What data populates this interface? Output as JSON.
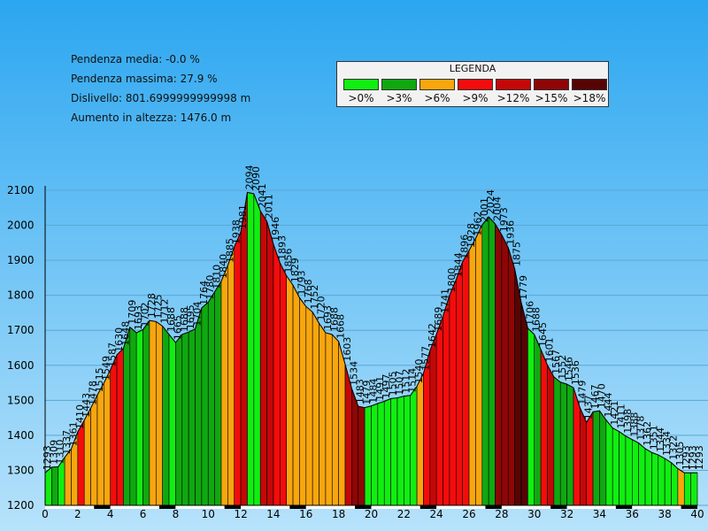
{
  "stats": {
    "avg_grade": "Pendenza media: -0.0 %",
    "max_grade": "Pendenza massima: 27.9 %",
    "drop": "Dislivello: 801.6999999999998 m",
    "gain": "Aumento in altezza: 1476.0 m"
  },
  "legend": {
    "title": "LEGENDA",
    "items": [
      {
        "label": ">0%",
        "color": "#11ee11"
      },
      {
        "label": ">3%",
        "color": "#10a810"
      },
      {
        "label": ">6%",
        "color": "#f7a60e"
      },
      {
        "label": ">9%",
        "color": "#f40c0c"
      },
      {
        "label": ">12%",
        "color": "#c40808"
      },
      {
        "label": ">15%",
        "color": "#8e0606"
      },
      {
        "label": ">18%",
        "color": "#560404"
      }
    ]
  },
  "chart_data": {
    "type": "area",
    "xlim": [
      0,
      40
    ],
    "ylim": [
      1200,
      2100
    ],
    "x_ticks": [
      "0",
      "2",
      "4",
      "6",
      "8",
      "10",
      "12",
      "14",
      "16",
      "18",
      "20",
      "22",
      "24",
      "26",
      "28",
      "30",
      "32",
      "34",
      "36",
      "38",
      "40"
    ],
    "y_ticks": [
      "1200",
      "1300",
      "1400",
      "1500",
      "1600",
      "1700",
      "1800",
      "1900",
      "2000",
      "2100"
    ],
    "grid": true,
    "segments": [
      {
        "x": 0.0,
        "elev": 1293,
        "label": "1293",
        "grade": 0
      },
      {
        "x": 0.4,
        "elev": 1309,
        "label": "1309",
        "grade": 1
      },
      {
        "x": 0.8,
        "elev": 1310,
        "label": "1310",
        "grade": 0
      },
      {
        "x": 1.2,
        "elev": 1337,
        "label": "1337",
        "grade": 2
      },
      {
        "x": 1.6,
        "elev": 1361,
        "label": "1361",
        "grade": 2
      },
      {
        "x": 2.0,
        "elev": 1410,
        "label": "1410",
        "grade": 3
      },
      {
        "x": 2.4,
        "elev": 1443,
        "label": "1443",
        "grade": 2
      },
      {
        "x": 2.8,
        "elev": 1478,
        "label": "1478",
        "grade": 2
      },
      {
        "x": 3.2,
        "elev": 1515,
        "label": "1515",
        "grade": 2
      },
      {
        "x": 3.6,
        "elev": 1549,
        "label": "1549",
        "grade": 2
      },
      {
        "x": 4.0,
        "elev": 1587,
        "label": "1587",
        "grade": 3
      },
      {
        "x": 4.4,
        "elev": 1630,
        "label": "1630",
        "grade": 3
      },
      {
        "x": 4.8,
        "elev": 1648,
        "label": "1648",
        "grade": 1
      },
      {
        "x": 5.2,
        "elev": 1709,
        "label": "1709",
        "grade": 1
      },
      {
        "x": 5.6,
        "elev": 1693,
        "label": "1693",
        "grade": 0
      },
      {
        "x": 6.0,
        "elev": 1702,
        "label": "1702",
        "grade": 1
      },
      {
        "x": 6.4,
        "elev": 1728,
        "label": "1728",
        "grade": 2
      },
      {
        "x": 6.8,
        "elev": 1725,
        "label": "1725",
        "grade": 2
      },
      {
        "x": 7.2,
        "elev": 1712,
        "label": "1712",
        "grade": 1
      },
      {
        "x": 7.6,
        "elev": 1688,
        "label": "1688",
        "grade": 0
      },
      {
        "x": 8.0,
        "elev": 1665,
        "label": "1665",
        "grade": 1
      },
      {
        "x": 8.4,
        "elev": 1688,
        "label": "1688",
        "grade": 1
      },
      {
        "x": 8.8,
        "elev": 1695,
        "label": "1695",
        "grade": 1
      },
      {
        "x": 9.2,
        "elev": 1704,
        "label": "1704",
        "grade": 1
      },
      {
        "x": 9.6,
        "elev": 1764,
        "label": "1764",
        "grade": 1
      },
      {
        "x": 10.0,
        "elev": 1780,
        "label": "1780",
        "grade": 1
      },
      {
        "x": 10.4,
        "elev": 1810,
        "label": "1810",
        "grade": 1
      },
      {
        "x": 10.8,
        "elev": 1840,
        "label": "1840",
        "grade": 2
      },
      {
        "x": 11.2,
        "elev": 1885,
        "label": "1885",
        "grade": 2
      },
      {
        "x": 11.6,
        "elev": 1938,
        "label": "1938",
        "grade": 3
      },
      {
        "x": 12.0,
        "elev": 1981,
        "label": "1981",
        "grade": 4
      },
      {
        "x": 12.4,
        "elev": 2094,
        "label": "2094",
        "grade": 0
      },
      {
        "x": 12.8,
        "elev": 2090,
        "label": "2090",
        "grade": 0
      },
      {
        "x": 13.2,
        "elev": 2041,
        "label": "2041",
        "grade": 4
      },
      {
        "x": 13.6,
        "elev": 2011,
        "label": "2011",
        "grade": 4
      },
      {
        "x": 14.0,
        "elev": 1946,
        "label": "1946",
        "grade": 3
      },
      {
        "x": 14.4,
        "elev": 1893,
        "label": "1893",
        "grade": 3
      },
      {
        "x": 14.8,
        "elev": 1856,
        "label": "1856",
        "grade": 2
      },
      {
        "x": 15.2,
        "elev": 1829,
        "label": "1829",
        "grade": 2
      },
      {
        "x": 15.6,
        "elev": 1793,
        "label": "1793",
        "grade": 2
      },
      {
        "x": 16.0,
        "elev": 1768,
        "label": "1768",
        "grade": 2
      },
      {
        "x": 16.4,
        "elev": 1752,
        "label": "1752",
        "grade": 2
      },
      {
        "x": 16.8,
        "elev": 1720,
        "label": "1720",
        "grade": 2
      },
      {
        "x": 17.2,
        "elev": 1693,
        "label": "1693",
        "grade": 2
      },
      {
        "x": 17.6,
        "elev": 1688,
        "label": "1688",
        "grade": 2
      },
      {
        "x": 18.0,
        "elev": 1668,
        "label": "1668",
        "grade": 2
      },
      {
        "x": 18.4,
        "elev": 1603,
        "label": "1603",
        "grade": 4
      },
      {
        "x": 18.8,
        "elev": 1534,
        "label": "1534",
        "grade": 5
      },
      {
        "x": 19.2,
        "elev": 1483,
        "label": "1483",
        "grade": 5
      },
      {
        "x": 19.6,
        "elev": 1479,
        "label": "1479",
        "grade": 0
      },
      {
        "x": 20.0,
        "elev": 1484,
        "label": "1484",
        "grade": 0
      },
      {
        "x": 20.4,
        "elev": 1491,
        "label": "1491",
        "grade": 0
      },
      {
        "x": 20.8,
        "elev": 1497,
        "label": "1497",
        "grade": 0
      },
      {
        "x": 21.2,
        "elev": 1505,
        "label": "1505",
        "grade": 0
      },
      {
        "x": 21.6,
        "elev": 1507,
        "label": "1507",
        "grade": 0
      },
      {
        "x": 22.0,
        "elev": 1512,
        "label": "1512",
        "grade": 0
      },
      {
        "x": 22.4,
        "elev": 1514,
        "label": "1514",
        "grade": 0
      },
      {
        "x": 22.8,
        "elev": 1540,
        "label": "1540",
        "grade": 2
      },
      {
        "x": 23.2,
        "elev": 1577,
        "label": "1577",
        "grade": 3
      },
      {
        "x": 23.6,
        "elev": 1642,
        "label": "1642",
        "grade": 4
      },
      {
        "x": 24.0,
        "elev": 1689,
        "label": "1689",
        "grade": 3
      },
      {
        "x": 24.4,
        "elev": 1741,
        "label": "1741",
        "grade": 3
      },
      {
        "x": 24.8,
        "elev": 1800,
        "label": "1800",
        "grade": 3
      },
      {
        "x": 25.2,
        "elev": 1844,
        "label": "1844",
        "grade": 3
      },
      {
        "x": 25.6,
        "elev": 1896,
        "label": "1896",
        "grade": 3
      },
      {
        "x": 26.0,
        "elev": 1928,
        "label": "1928",
        "grade": 2
      },
      {
        "x": 26.4,
        "elev": 1962,
        "label": "1962",
        "grade": 2
      },
      {
        "x": 26.8,
        "elev": 2001,
        "label": "2001",
        "grade": 1
      },
      {
        "x": 27.2,
        "elev": 2024,
        "label": "2024",
        "grade": 1
      },
      {
        "x": 27.6,
        "elev": 2004,
        "label": "2004",
        "grade": 5
      },
      {
        "x": 28.0,
        "elev": 1973,
        "label": "1973",
        "grade": 5
      },
      {
        "x": 28.4,
        "elev": 1936,
        "label": "1936",
        "grade": 5
      },
      {
        "x": 28.8,
        "elev": 1875,
        "label": "1875",
        "grade": 6
      },
      {
        "x": 29.2,
        "elev": 1779,
        "label": "1779",
        "grade": 6
      },
      {
        "x": 29.6,
        "elev": 1706,
        "label": "1706",
        "grade": 0
      },
      {
        "x": 30.0,
        "elev": 1688,
        "label": "1688",
        "grade": 1
      },
      {
        "x": 30.4,
        "elev": 1645,
        "label": "1645",
        "grade": 3
      },
      {
        "x": 30.8,
        "elev": 1601,
        "label": "1601",
        "grade": 4
      },
      {
        "x": 31.2,
        "elev": 1567,
        "label": "1567",
        "grade": 1
      },
      {
        "x": 31.6,
        "elev": 1552,
        "label": "1552",
        "grade": 1
      },
      {
        "x": 32.0,
        "elev": 1546,
        "label": "1546",
        "grade": 1
      },
      {
        "x": 32.4,
        "elev": 1536,
        "label": "1536",
        "grade": 3
      },
      {
        "x": 32.8,
        "elev": 1479,
        "label": "1479",
        "grade": 4
      },
      {
        "x": 33.2,
        "elev": 1437,
        "label": "1437",
        "grade": 3
      },
      {
        "x": 33.6,
        "elev": 1467,
        "label": "1467",
        "grade": 1
      },
      {
        "x": 34.0,
        "elev": 1470,
        "label": "1470",
        "grade": 1
      },
      {
        "x": 34.4,
        "elev": 1444,
        "label": "1444",
        "grade": 0
      },
      {
        "x": 34.8,
        "elev": 1421,
        "label": "1421",
        "grade": 0
      },
      {
        "x": 35.2,
        "elev": 1411,
        "label": "1411",
        "grade": 0
      },
      {
        "x": 35.6,
        "elev": 1398,
        "label": "1398",
        "grade": 0
      },
      {
        "x": 36.0,
        "elev": 1388,
        "label": "1388",
        "grade": 0
      },
      {
        "x": 36.4,
        "elev": 1378,
        "label": "1378",
        "grade": 0
      },
      {
        "x": 36.8,
        "elev": 1362,
        "label": "1362",
        "grade": 0
      },
      {
        "x": 37.2,
        "elev": 1351,
        "label": "1351",
        "grade": 0
      },
      {
        "x": 37.6,
        "elev": 1344,
        "label": "1344",
        "grade": 0
      },
      {
        "x": 38.0,
        "elev": 1334,
        "label": "1334",
        "grade": 0
      },
      {
        "x": 38.4,
        "elev": 1322,
        "label": "1322",
        "grade": 0
      },
      {
        "x": 38.8,
        "elev": 1305,
        "label": "1305",
        "grade": 2
      },
      {
        "x": 39.2,
        "elev": 1293,
        "label": "1293",
        "grade": 0
      },
      {
        "x": 39.6,
        "elev": 1293,
        "label": "1293",
        "grade": 0
      }
    ],
    "end_x": 40,
    "end_label": "1293"
  }
}
